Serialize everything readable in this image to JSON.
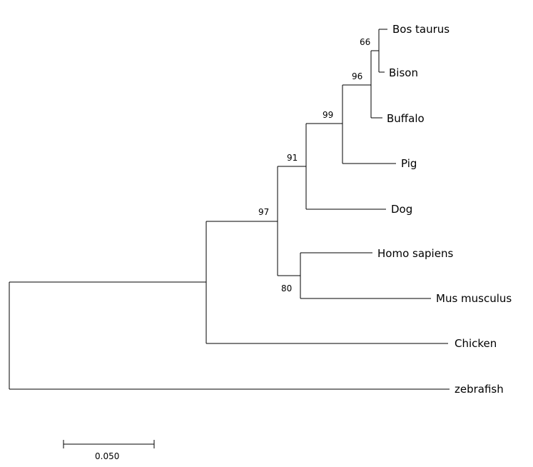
{
  "diagram": {
    "type": "phylogenetic_tree",
    "taxa": [
      "Bos taurus",
      "Bison",
      "Buffalo",
      "Pig",
      "Dog",
      "Homo sapiens",
      "Mus musculus",
      "Chicken",
      "zebrafish"
    ],
    "bootstrap": {
      "bos_bison": "66",
      "bovine": "96",
      "pig_clade": "99",
      "dog_clade": "91",
      "mammals": "97",
      "human_mouse": "80"
    },
    "scale_bar": {
      "label": "0.050",
      "value": 0.05
    }
  }
}
